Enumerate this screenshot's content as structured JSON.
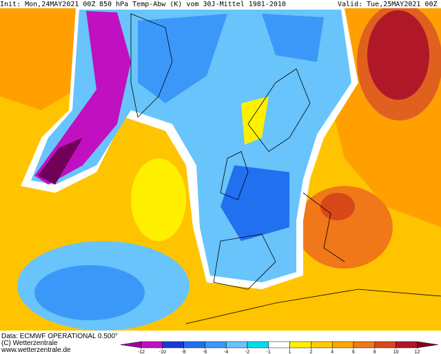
{
  "header": {
    "init": "Init: Mon,24MAY2021  00Z",
    "title": "850 hPa Temp-Abw (K) vom 30J-Mittel 1981-2010",
    "valid": "Valid: Tue,25MAY2021  00Z"
  },
  "footer": {
    "data": "Data: ECMWF OPERATIONAL 0.500°",
    "copyright": "(C) Wetterzentrale",
    "url": "www.wetterzentrale.de"
  },
  "colorbar": {
    "ticks": [
      -12,
      -10,
      -8,
      -6,
      -4,
      -2,
      -1,
      1,
      2,
      4,
      6,
      8,
      10,
      12
    ],
    "colors": [
      "#c010c0",
      "#1838d8",
      "#2070f0",
      "#3c98f8",
      "#68c4fa",
      "#00dcf0",
      "#ffffff",
      "#fff000",
      "#ffcc00",
      "#ffa800",
      "#f07818",
      "#d84818",
      "#b01828"
    ],
    "under_color": "#a000a0",
    "over_color": "#800020"
  }
}
